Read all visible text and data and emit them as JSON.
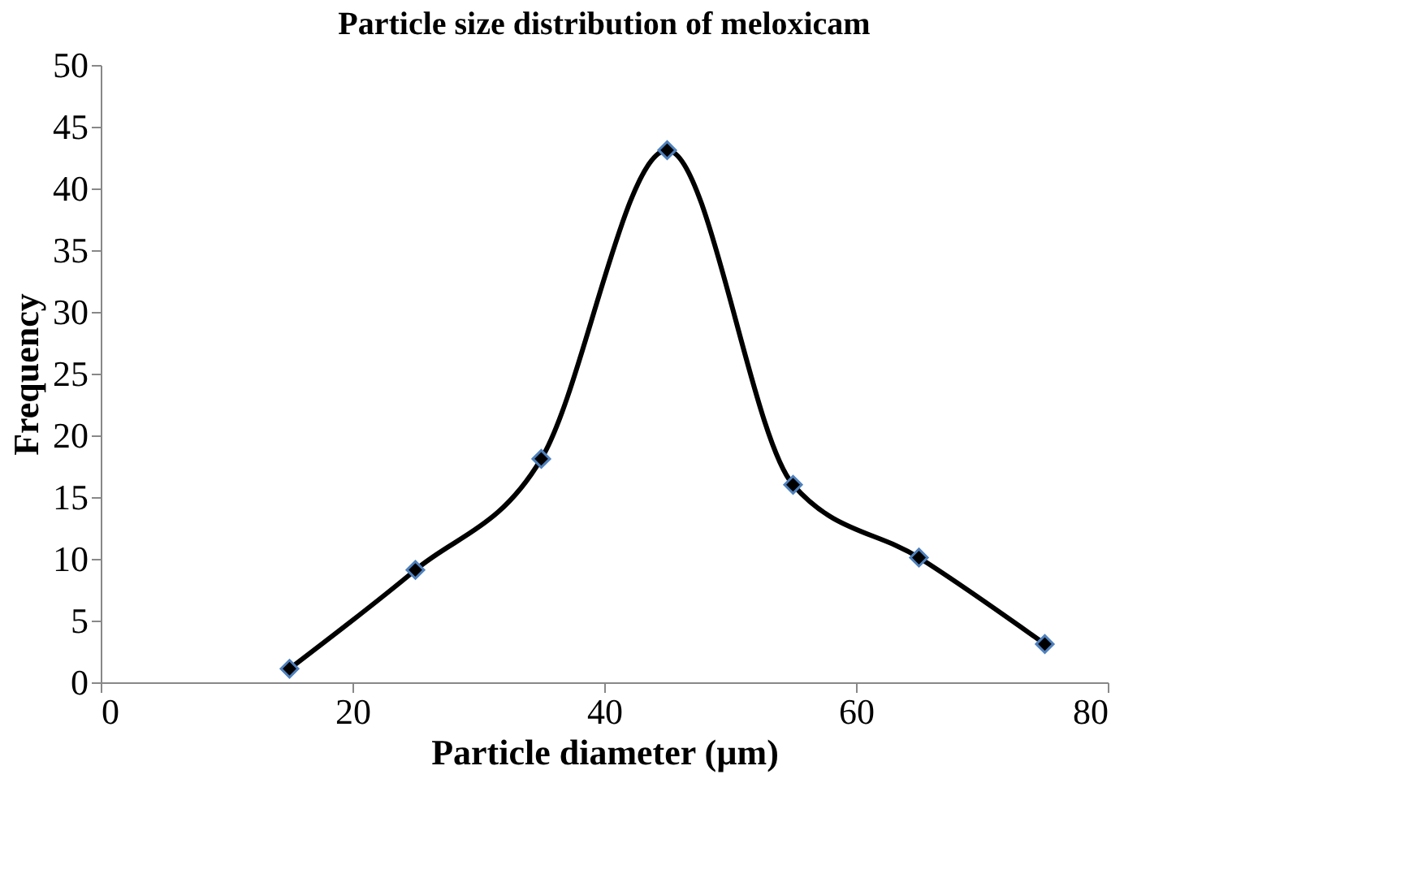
{
  "chart_data": {
    "type": "line",
    "title": "Particle size distribution of meloxicam",
    "xlabel": "Particle diameter (µm)",
    "ylabel": "Frequency",
    "x": [
      15,
      25,
      35,
      45,
      55,
      65,
      75
    ],
    "series": [
      {
        "color": "#000000",
        "values": [
          1.1,
          9.1,
          18.1,
          43.1,
          16,
          10.1,
          3.1
        ]
      }
    ],
    "xlim": [
      0,
      80
    ],
    "xticks": [
      0,
      20,
      40,
      60,
      80
    ],
    "ylim": [
      0,
      50
    ],
    "yticks": [
      0,
      5,
      10,
      15,
      20,
      25,
      30,
      35,
      40,
      45,
      50
    ],
    "grid": false,
    "legend": false,
    "marker": "diamond",
    "line_style": "solid"
  }
}
